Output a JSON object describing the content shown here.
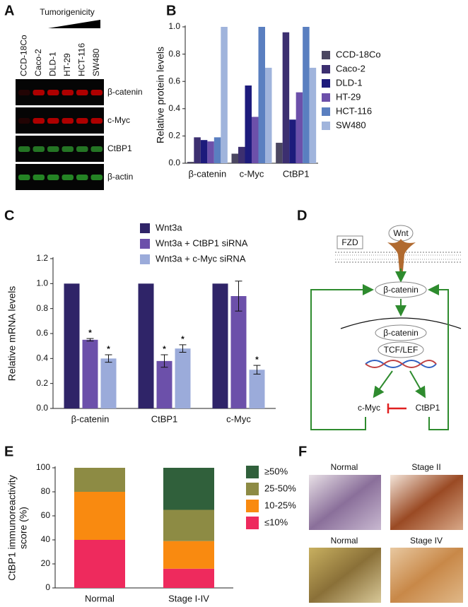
{
  "chart_data": [
    {
      "type": "bar",
      "ylabel": "Relative protein levels",
      "categories": [
        "β-catenin",
        "c-Myc",
        "CtBP1"
      ],
      "ylim": [
        0,
        1
      ],
      "yticks": [
        {
          "value": 0,
          "label": "0.0"
        },
        0.2,
        0.4,
        0.6,
        0.8,
        {
          "value": 1,
          "label": "1.0"
        }
      ],
      "series": [
        {
          "name": "CCD-18Co",
          "color": "#4b4761",
          "values": [
            0.01,
            0.07,
            0.15
          ]
        },
        {
          "name": "Caco-2",
          "color": "#3c2f70",
          "values": [
            0.19,
            0.12,
            0.96
          ]
        },
        {
          "name": "DLD-1",
          "color": "#1d1b7c",
          "values": [
            0.17,
            0.57,
            0.32
          ]
        },
        {
          "name": "HT-29",
          "color": "#6c50aa",
          "values": [
            0.16,
            0.34,
            0.52
          ]
        },
        {
          "name": "HCT-116",
          "color": "#5a7fc0",
          "values": [
            0.19,
            1.0,
            1.0
          ]
        },
        {
          "name": "SW480",
          "color": "#a0b4dc",
          "values": [
            1.0,
            0.7,
            0.7
          ]
        }
      ]
    },
    {
      "type": "bar",
      "ylabel": "Relative mRNA levels",
      "categories": [
        "β-catenin",
        "CtBP1",
        "c-Myc"
      ],
      "ylim": [
        0,
        1.2
      ],
      "yticks": [
        {
          "value": 0,
          "label": "0.0"
        },
        0.2,
        0.4,
        0.6,
        0.8,
        {
          "value": 1,
          "label": "1.0"
        },
        1.2
      ],
      "series": [
        {
          "name": "Wnt3a",
          "color": "#2f2468",
          "values": [
            1,
            1,
            1
          ]
        },
        {
          "name": "Wnt3a + CtBP1 siRNA",
          "color": "#6c50aa",
          "values": [
            0.55,
            0.38,
            0.9
          ],
          "error": [
            0.01,
            0.05,
            0.12
          ],
          "annotations": [
            "*",
            "*",
            null
          ]
        },
        {
          "name": "Wnt3a + c-Myc siRNA",
          "color": "#9babda",
          "values": [
            0.4,
            0.48,
            0.31
          ],
          "error": [
            0.03,
            0.03,
            0.035
          ],
          "annotations": [
            "*",
            "*",
            "*"
          ]
        }
      ]
    },
    {
      "type": "bar",
      "stacked": true,
      "ylabel": [
        "CtBP1 immunoreactivity",
        "score (%)"
      ],
      "categories": [
        "Normal",
        "Stage I-IV"
      ],
      "ylim": [
        0,
        100
      ],
      "yticks": [
        0,
        20,
        40,
        60,
        80,
        100
      ],
      "series": [
        {
          "name": "≤10%",
          "color": "#ee2a5d",
          "values": [
            40,
            16
          ]
        },
        {
          "name": "10-25%",
          "color": "#f98a10",
          "values": [
            40,
            23
          ]
        },
        {
          "name": "25-50%",
          "color": "#8d8b44",
          "values": [
            20,
            26
          ]
        },
        {
          "name": "≥50%",
          "color": "#30603b",
          "values": [
            0,
            35
          ]
        }
      ]
    }
  ],
  "panel_labels": [
    "A",
    "B",
    "C",
    "D",
    "E",
    "F"
  ],
  "blot": {
    "title": "Tumorigenicity",
    "lanes": [
      "CCD-18Co",
      "Caco-2",
      "DLD-1",
      "HT-29",
      "HCT-116",
      "SW480"
    ],
    "proteins": [
      "β-catenin",
      "c-Myc",
      "CtBP1",
      "β-actin"
    ]
  },
  "diagram": {
    "ligand": "Wnt",
    "receptor": "FZD",
    "cytoplasmic": "β-catenin",
    "nuclear": "β-catenin",
    "factor": "TCF/LEF",
    "target1": "c-Myc",
    "target2": "CtBP1"
  },
  "histology": {
    "labels": [
      "Normal",
      "Stage II",
      "Normal",
      "Stage IV"
    ]
  }
}
